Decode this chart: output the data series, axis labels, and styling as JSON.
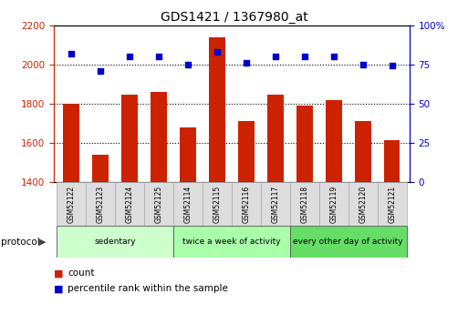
{
  "title": "GDS1421 / 1367980_at",
  "samples": [
    "GSM52122",
    "GSM52123",
    "GSM52124",
    "GSM52125",
    "GSM52114",
    "GSM52115",
    "GSM52116",
    "GSM52117",
    "GSM52118",
    "GSM52119",
    "GSM52120",
    "GSM52121"
  ],
  "counts": [
    1800,
    1540,
    1845,
    1860,
    1680,
    2140,
    1710,
    1845,
    1790,
    1820,
    1710,
    1615
  ],
  "percentiles": [
    82,
    71,
    80,
    80,
    75,
    83,
    76,
    80,
    80,
    80,
    75,
    74
  ],
  "ylim_left": [
    1400,
    2200
  ],
  "ylim_right": [
    0,
    100
  ],
  "yticks_left": [
    1400,
    1600,
    1800,
    2000,
    2200
  ],
  "yticks_right": [
    0,
    25,
    50,
    75,
    100
  ],
  "bar_color": "#cc2200",
  "dot_color": "#0000cc",
  "bg_color": "#ffffff",
  "title_fontsize": 10,
  "groups": [
    {
      "label": "sedentary",
      "start": 0,
      "end": 4,
      "color": "#ccffcc"
    },
    {
      "label": "twice a week of activity",
      "start": 4,
      "end": 8,
      "color": "#aaffaa"
    },
    {
      "label": "every other day of activity",
      "start": 8,
      "end": 12,
      "color": "#66dd66"
    }
  ],
  "protocol_label": "protocol",
  "legend_count_label": "count",
  "legend_percentile_label": "percentile rank within the sample",
  "tick_label_color_left": "#cc2200",
  "tick_label_color_right": "#0000cc",
  "label_bg": "#dddddd",
  "label_edge": "#aaaaaa"
}
